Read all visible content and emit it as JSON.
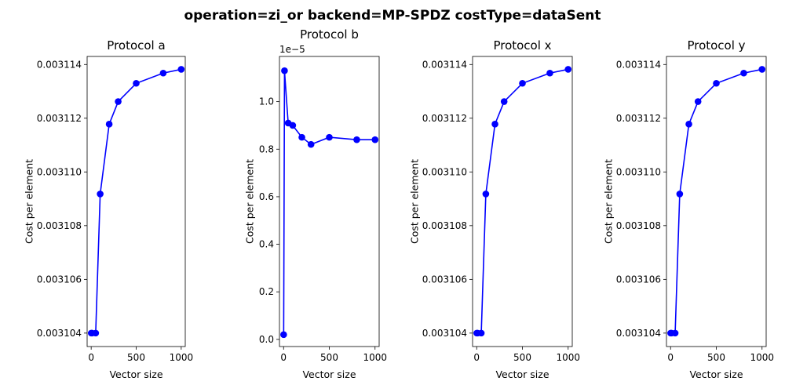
{
  "figure": {
    "suptitle": "operation=zi_or backend=MP-SPDZ costType=dataSent"
  },
  "chart_data": [
    {
      "type": "line",
      "title": "Protocol a",
      "xlabel": "Vector size",
      "ylabel": "Cost per element",
      "x": [
        1,
        10,
        50,
        100,
        200,
        300,
        500,
        800,
        1000
      ],
      "series": [
        {
          "values": [
            0.003104,
            0.003104,
            0.003104,
            0.00310918,
            0.00311178,
            0.00311262,
            0.0031133,
            0.00311368,
            0.00311382
          ]
        }
      ],
      "xlim": [
        -45,
        1045
      ],
      "ylim": [
        0.0031035,
        0.0031143
      ],
      "xticks": [
        0,
        500,
        1000
      ],
      "xtick_labels": [
        "0",
        "500",
        "1000"
      ],
      "yticks": [
        0.003104,
        0.003106,
        0.003108,
        0.00311,
        0.003112,
        0.003114
      ],
      "ytick_labels": [
        "0.003104",
        "0.003106",
        "0.003108",
        "0.003110",
        "0.003112",
        "0.003114"
      ],
      "offset_label": "",
      "grid": false,
      "color": "#0000ff"
    },
    {
      "type": "line",
      "title": "Protocol b",
      "xlabel": "Vector size",
      "ylabel": "Cost per element",
      "x": [
        1,
        10,
        50,
        100,
        200,
        300,
        500,
        800,
        1000
      ],
      "series": [
        {
          "values": [
            2e-07,
            1.13e-05,
            9.1e-06,
            9e-06,
            8.5e-06,
            8.2e-06,
            8.5e-06,
            8.4e-06,
            8.4e-06
          ]
        }
      ],
      "xlim": [
        -45,
        1045
      ],
      "ylim": [
        -3e-07,
        1.19e-05
      ],
      "xticks": [
        0,
        500,
        1000
      ],
      "xtick_labels": [
        "0",
        "500",
        "1000"
      ],
      "yticks": [
        0,
        2e-06,
        4e-06,
        6e-06,
        8e-06,
        1e-05
      ],
      "ytick_labels": [
        "0.0",
        "0.2",
        "0.4",
        "0.6",
        "0.8",
        "1.0"
      ],
      "offset_label": "1e−5",
      "grid": false,
      "color": "#0000ff"
    },
    {
      "type": "line",
      "title": "Protocol x",
      "xlabel": "Vector size",
      "ylabel": "Cost per element",
      "x": [
        1,
        10,
        50,
        100,
        200,
        300,
        500,
        800,
        1000
      ],
      "series": [
        {
          "values": [
            0.003104,
            0.003104,
            0.003104,
            0.00310918,
            0.00311178,
            0.00311262,
            0.0031133,
            0.00311368,
            0.00311382
          ]
        }
      ],
      "xlim": [
        -45,
        1045
      ],
      "ylim": [
        0.0031035,
        0.0031143
      ],
      "xticks": [
        0,
        500,
        1000
      ],
      "xtick_labels": [
        "0",
        "500",
        "1000"
      ],
      "yticks": [
        0.003104,
        0.003106,
        0.003108,
        0.00311,
        0.003112,
        0.003114
      ],
      "ytick_labels": [
        "0.003104",
        "0.003106",
        "0.003108",
        "0.003110",
        "0.003112",
        "0.003114"
      ],
      "offset_label": "",
      "grid": false,
      "color": "#0000ff"
    },
    {
      "type": "line",
      "title": "Protocol y",
      "xlabel": "Vector size",
      "ylabel": "Cost per element",
      "x": [
        1,
        10,
        50,
        100,
        200,
        300,
        500,
        800,
        1000
      ],
      "series": [
        {
          "values": [
            0.003104,
            0.003104,
            0.003104,
            0.00310918,
            0.00311178,
            0.00311262,
            0.0031133,
            0.00311368,
            0.00311382
          ]
        }
      ],
      "xlim": [
        -45,
        1045
      ],
      "ylim": [
        0.0031035,
        0.0031143
      ],
      "xticks": [
        0,
        500,
        1000
      ],
      "xtick_labels": [
        "0",
        "500",
        "1000"
      ],
      "yticks": [
        0.003104,
        0.003106,
        0.003108,
        0.00311,
        0.003112,
        0.003114
      ],
      "ytick_labels": [
        "0.003104",
        "0.003106",
        "0.003108",
        "0.003110",
        "0.003112",
        "0.003114"
      ],
      "offset_label": "",
      "grid": false,
      "color": "#0000ff"
    }
  ]
}
